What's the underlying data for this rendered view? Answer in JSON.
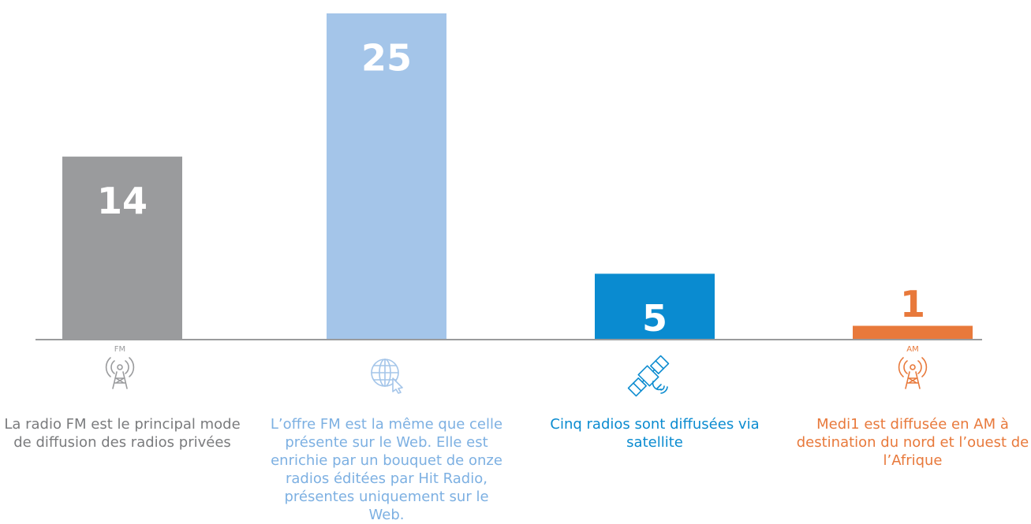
{
  "chart_data": {
    "type": "bar",
    "categories": [
      "La radio FM est le principal mode de diffusion des radios privées",
      "L’offre FM est la même que celle présente sur le Web. Elle est enrichie par un bouquet de onze radios éditées par Hit Radio, présentes uniquement sur le Web.",
      "Cinq radios sont diffusées via satellite",
      "Medi1 est diffusée en AM à destination du nord et l’ouest de l’Afrique"
    ],
    "values": [
      14,
      25,
      5,
      1
    ],
    "colors": [
      "#9a9b9d",
      "#a4c5e9",
      "#0a8bd0",
      "#e8793b"
    ],
    "label_colors": [
      "#7a7b7d",
      "#7db0e2",
      "#0a8bd0",
      "#e8793b"
    ],
    "icon_texts": [
      "FM",
      "AM"
    ],
    "ylim": [
      0,
      25
    ]
  }
}
